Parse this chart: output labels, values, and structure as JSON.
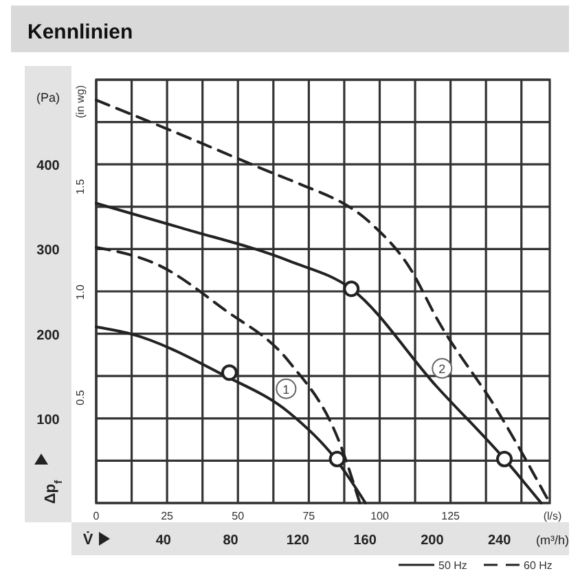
{
  "chart_data": {
    "type": "line",
    "title": "Kennlinien",
    "xlabel": "(l/s)",
    "x2label": "(m³/h)",
    "ylabel": "(Pa)",
    "y2label": "(in wg)",
    "annotations": [
      "Δp$_{f}$",
      "V̇",
      {
        "text": "1",
        "x": 67,
        "y": 135
      },
      {
        "text": "2",
        "x": 122,
        "y": 159
      }
    ],
    "xlim": [
      0,
      160
    ],
    "xticks": [
      0,
      {
        "value": 12.5,
        "label": null
      },
      25,
      {
        "value": 37.5,
        "label": null
      },
      50,
      {
        "value": 62.5,
        "label": null
      },
      75,
      {
        "value": 87.5,
        "label": null
      },
      100,
      {
        "value": 112.5,
        "label": null
      },
      125,
      {
        "value": 137.5,
        "label": null
      },
      {
        "value": 150,
        "label": null
      }
    ],
    "x2lim": [
      0,
      270
    ],
    "x2ticks": [
      40,
      80,
      120,
      160,
      200,
      240
    ],
    "ylim": [
      0,
      500
    ],
    "yticks": [
      {
        "value": 0,
        "label": null
      },
      {
        "value": 50,
        "label": null
      },
      100,
      {
        "value": 150,
        "label": null
      },
      200,
      {
        "value": 250,
        "label": null
      },
      300,
      {
        "value": 350,
        "label": null
      },
      400,
      {
        "value": 450,
        "label": null
      },
      {
        "value": 500,
        "label": null
      }
    ],
    "y2lim": [
      0,
      2.008
    ],
    "y2ticks": [
      {
        "value": 0.5,
        "label": "0.5"
      },
      {
        "value": 1,
        "label": "1.0"
      },
      {
        "value": 1.5,
        "label": "1.5"
      }
    ],
    "grid": true,
    "legend": "bottom right",
    "series": [
      {
        "name": "50 Hz",
        "color": "#222222",
        "line_style": "solid",
        "x": [
          0,
          30,
          68,
          90,
          120,
          144,
          157
        ],
        "values": [
          354,
          325,
          286,
          253,
          138,
          52,
          0
        ]
      },
      {
        "name": "60 Hz",
        "color": "#222222",
        "line_style": "dashed",
        "x": [
          0,
          30,
          65,
          71,
          97,
          110,
          121,
          141,
          160
        ],
        "values": [
          476,
          435,
          386,
          378,
          330,
          281,
          213,
          112,
          0
        ]
      },
      {
        "color": "#222222",
        "line_style": "solid",
        "x": [
          0,
          12,
          45,
          68,
          84,
          95
        ],
        "values": [
          208,
          200,
          151,
          107,
          54,
          0
        ]
      },
      {
        "color": "#222222",
        "line_style": "dashed",
        "x": [
          0,
          22,
          45,
          68,
          86,
          93
        ],
        "values": [
          302,
          281,
          229,
          167,
          70,
          0
        ]
      },
      {
        "type": "scatter",
        "color": "#222222",
        "marker": "circle",
        "x": [
          47,
          85,
          90,
          144
        ],
        "values": [
          154,
          52,
          253,
          52
        ]
      }
    ]
  }
}
